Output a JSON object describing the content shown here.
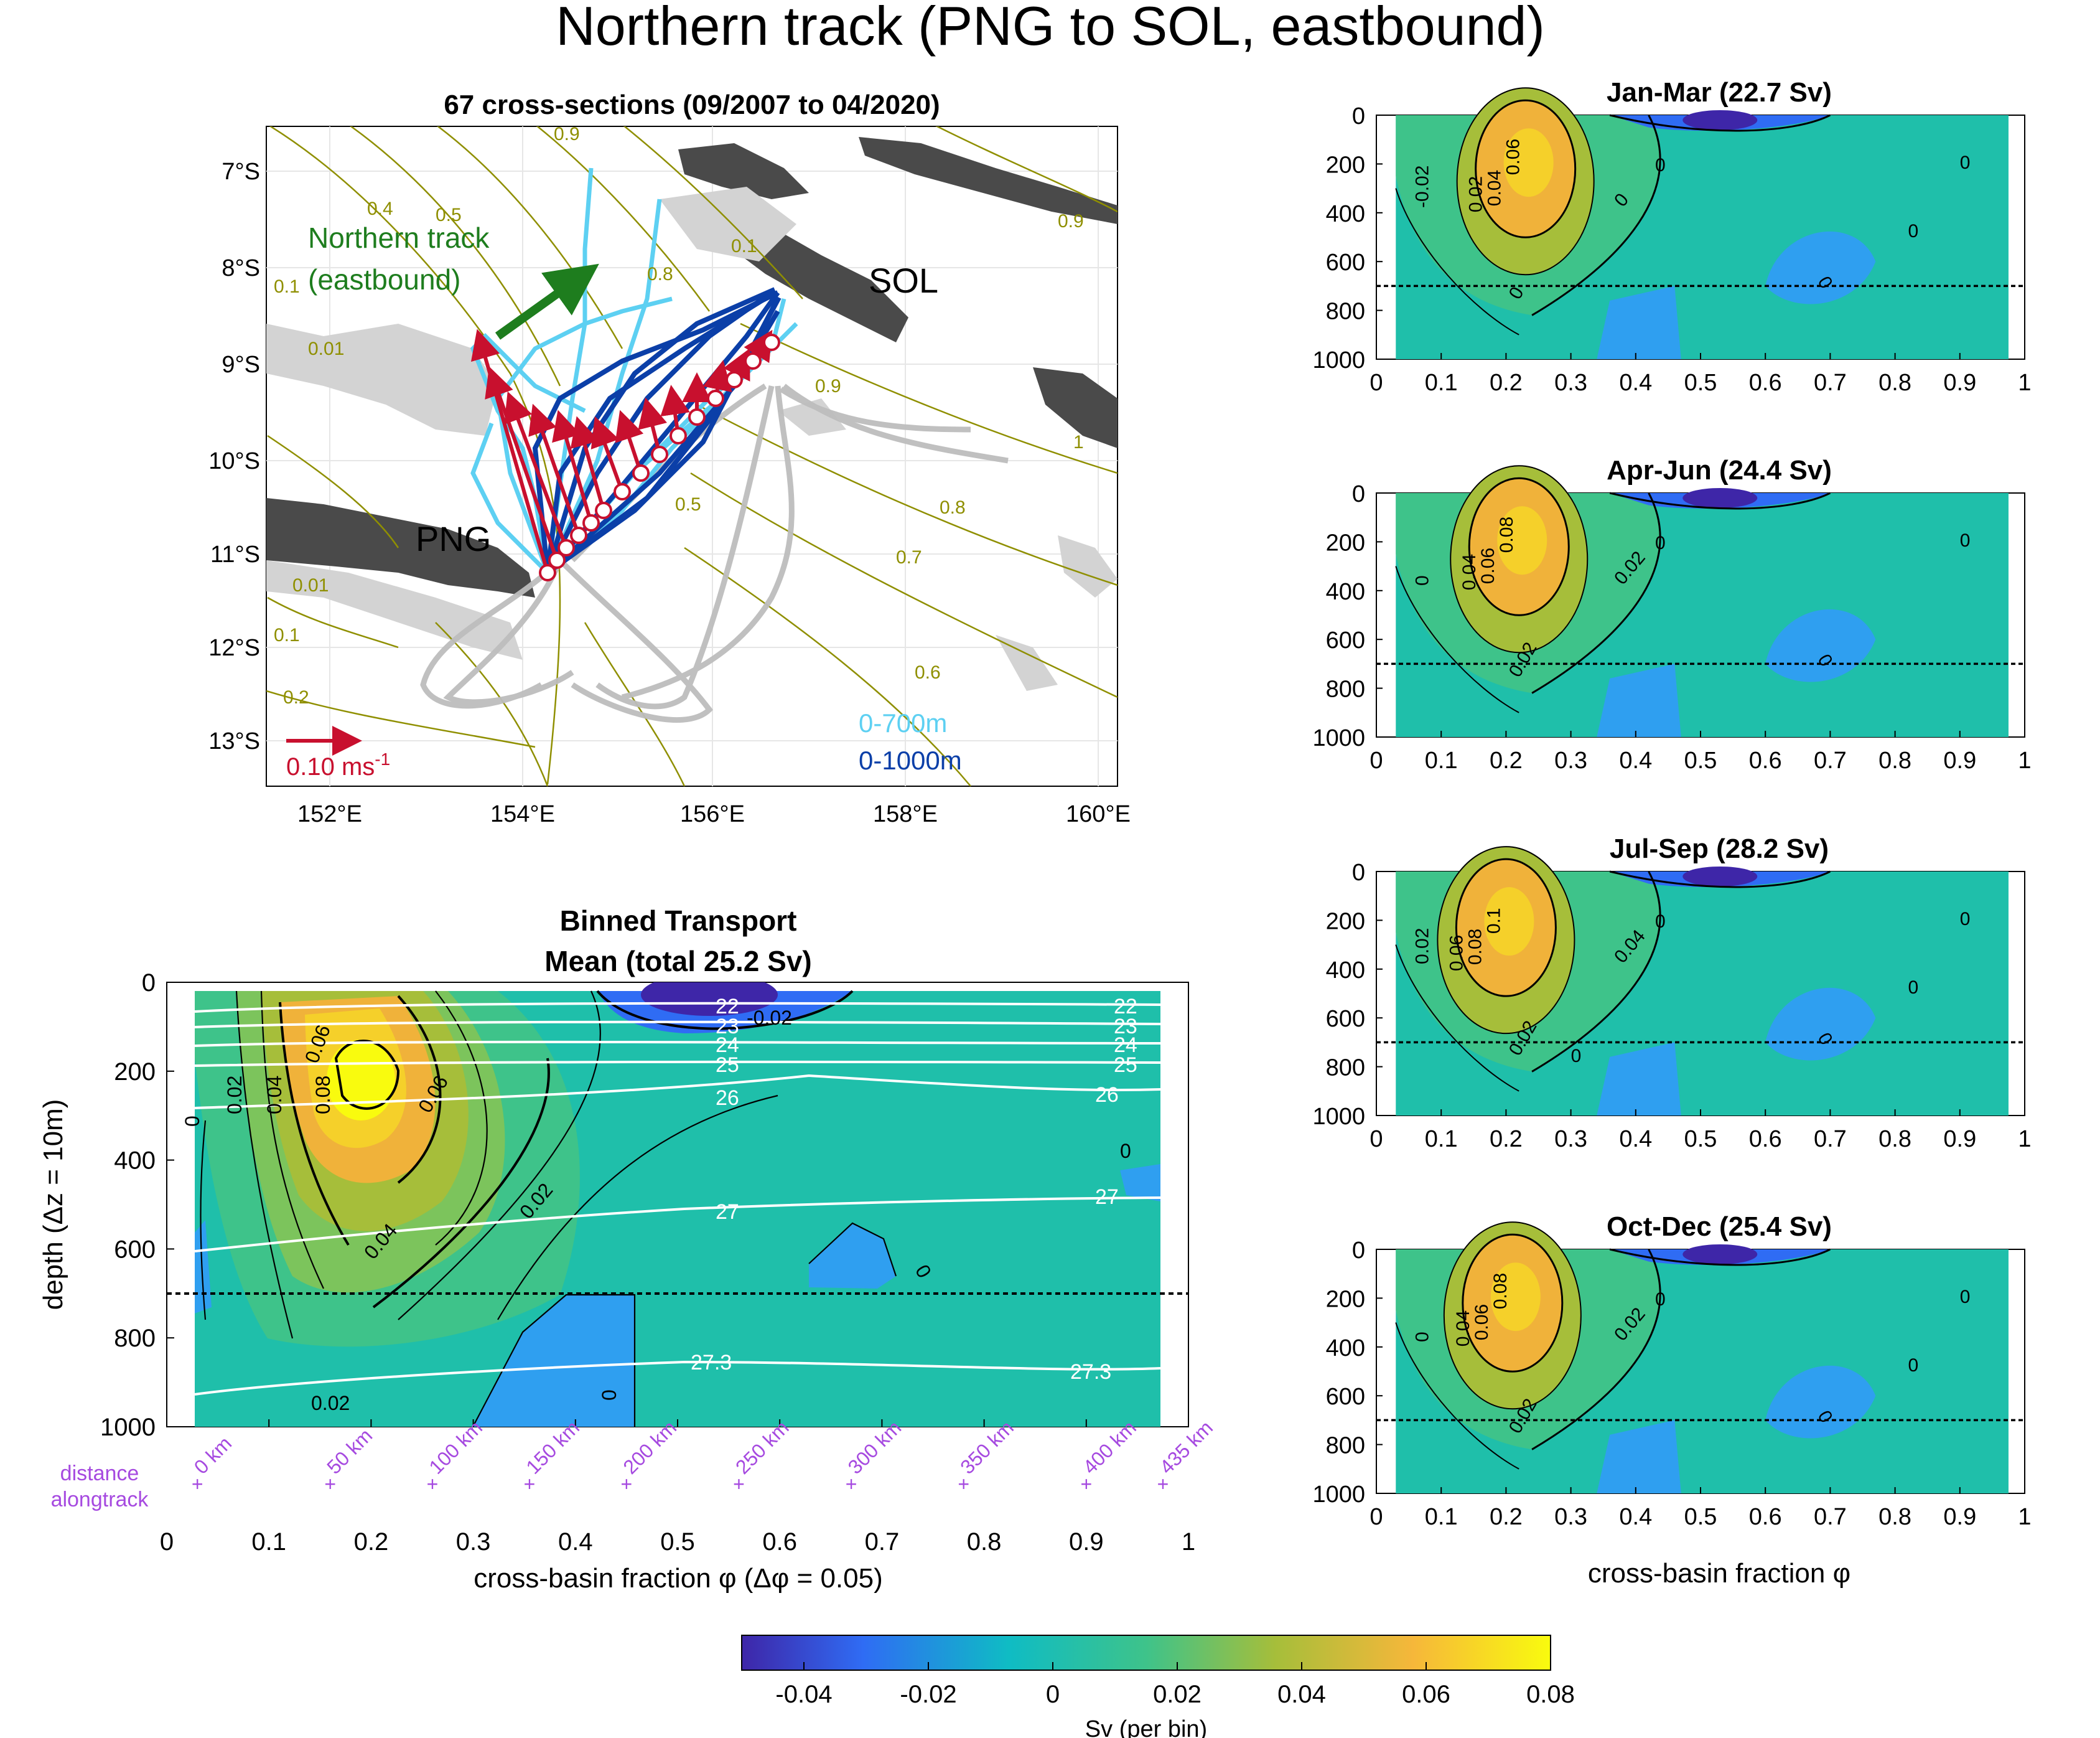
{
  "figure": {
    "title": "Northern track (PNG to SOL, eastbound)"
  },
  "map": {
    "title": "67 cross-sections (09/2007 to 04/2020)",
    "lat_ticks": [
      "7°S",
      "8°S",
      "9°S",
      "10°S",
      "11°S",
      "12°S",
      "13°S"
    ],
    "lon_ticks": [
      "152°E",
      "154°E",
      "156°E",
      "158°E",
      "160°E"
    ],
    "labels": {
      "track_line1": "Northern track",
      "track_line2": "(eastbound)",
      "sol": "SOL",
      "png": "PNG",
      "scale": "0.10 ms",
      "scale_sup": "-1",
      "legend_700": "0-700m",
      "legend_1000": "0-1000m"
    },
    "contour_labels": [
      "0.9",
      "0.4",
      "0.5",
      "0.8",
      "0.1",
      "0.01",
      "0.9",
      "0.9",
      "1",
      "0.8",
      "0.7",
      "0.6",
      "0.5",
      "0.01",
      "0.1",
      "0.2",
      "0.1"
    ],
    "colors": {
      "light_track": "#5dd0f2",
      "dark_track": "#0b3fa8",
      "grey_track": "#bdbdbd",
      "arrow": "#c8102e",
      "land": "#4a4a4a",
      "contour": "#8f8f00",
      "green_arrow": "#1e7d1e"
    }
  },
  "main": {
    "title_line1": "Binned Transport",
    "title_line2": "Mean (total 25.2 Sv)",
    "ylabel": "depth (Δz = 10m)",
    "xlabel": "cross-basin fraction φ (Δφ = 0.05)",
    "distance_label_line1": "distance",
    "distance_label_line2": "alongtrack",
    "distance_ticks": [
      "0 km",
      "50 km",
      "100 km",
      "150 km",
      "200 km",
      "250 km",
      "300 km",
      "350 km",
      "400 km",
      "435 km"
    ],
    "contour_labels": [
      "0.02",
      "0.04",
      "0.06",
      "0.08",
      "0.06",
      "0.02",
      "0.04",
      "0.02",
      "0",
      "0",
      "0",
      "0",
      "-0.02"
    ],
    "density_labels": [
      "22",
      "23",
      "24",
      "25",
      "26",
      "27",
      "27.3",
      "22",
      "23",
      "24",
      "25",
      "26",
      "27",
      "27.3"
    ]
  },
  "seasons": [
    {
      "title": "Jan-Mar (22.7 Sv)",
      "labels": [
        "0.06",
        "0.04",
        "0.02",
        "0",
        "0",
        "-0.02",
        "0",
        "0",
        "0",
        "0"
      ]
    },
    {
      "title": "Apr-Jun (24.4 Sv)",
      "labels": [
        "0.08",
        "0.06",
        "0.04",
        "0.02",
        "0.02",
        "0",
        "0",
        "0",
        "0"
      ]
    },
    {
      "title": "Jul-Sep (28.2 Sv)",
      "labels": [
        "0.1",
        "0.08",
        "0.06",
        "0.04",
        "0.02",
        "0.02",
        "0",
        "0",
        "0",
        "0",
        "0"
      ]
    },
    {
      "title": "Oct-Dec (25.4 Sv)",
      "labels": [
        "0.08",
        "0.06",
        "0.04",
        "0.02",
        "0.02",
        "0",
        "0",
        "0",
        "0",
        "0"
      ]
    }
  ],
  "seasons_xlabel": "cross-basin fraction φ",
  "colorbar": {
    "label": "Sv (per bin)",
    "ticks": [
      "-0.04",
      "-0.02",
      "0",
      "0.02",
      "0.04",
      "0.06",
      "0.08"
    ]
  },
  "chart_data": [
    {
      "type": "heatmap",
      "title": "Binned Transport Mean (total 25.2 Sv)",
      "xlabel": "cross-basin fraction φ (Δφ = 0.05)",
      "ylabel": "depth (Δz = 10m)",
      "xlim": [
        0,
        1
      ],
      "ylim": [
        1000,
        0
      ],
      "x_ticks": [
        0,
        0.1,
        0.2,
        0.3,
        0.4,
        0.5,
        0.6,
        0.7,
        0.8,
        0.9,
        1
      ],
      "y_ticks": [
        0,
        200,
        400,
        600,
        800,
        1000
      ],
      "reference_depth": 700,
      "core": {
        "phi": 0.22,
        "depth": 200,
        "value": 0.08
      },
      "negative_core": {
        "phi": 0.52,
        "depth": 20,
        "value": -0.02
      },
      "contour_levels": [
        -0.02,
        0,
        0.02,
        0.04,
        0.06,
        0.08
      ],
      "density_contours": [
        22,
        23,
        24,
        25,
        26,
        27,
        27.3
      ],
      "distance_alongtrack_km": [
        0,
        50,
        100,
        150,
        200,
        250,
        300,
        350,
        400,
        435
      ],
      "distance_phi": [
        0.03,
        0.16,
        0.26,
        0.355,
        0.45,
        0.56,
        0.67,
        0.78,
        0.9,
        0.975
      ]
    },
    {
      "type": "heatmap",
      "title": "Jan-Mar (22.7 Sv)",
      "xlim": [
        0,
        1
      ],
      "ylim": [
        1000,
        0
      ],
      "core": {
        "phi": 0.23,
        "depth": 220,
        "value": 0.07
      }
    },
    {
      "type": "heatmap",
      "title": "Apr-Jun (24.4 Sv)",
      "xlim": [
        0,
        1
      ],
      "ylim": [
        1000,
        0
      ],
      "core": {
        "phi": 0.22,
        "depth": 220,
        "value": 0.08
      }
    },
    {
      "type": "heatmap",
      "title": "Jul-Sep (28.2 Sv)",
      "xlim": [
        0,
        1
      ],
      "ylim": [
        1000,
        0
      ],
      "core": {
        "phi": 0.2,
        "depth": 230,
        "value": 0.1
      }
    },
    {
      "type": "heatmap",
      "title": "Oct-Dec (25.4 Sv)",
      "xlim": [
        0,
        1
      ],
      "ylim": [
        1000,
        0
      ],
      "core": {
        "phi": 0.21,
        "depth": 220,
        "value": 0.08
      }
    }
  ]
}
